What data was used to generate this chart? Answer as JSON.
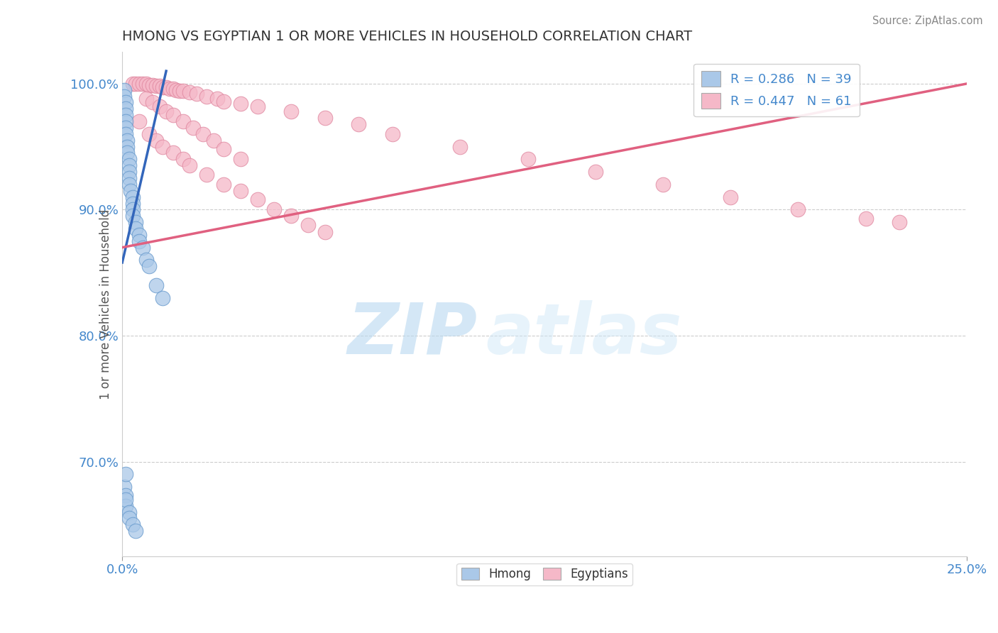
{
  "title": "HMONG VS EGYPTIAN 1 OR MORE VEHICLES IN HOUSEHOLD CORRELATION CHART",
  "source": "Source: ZipAtlas.com",
  "ylabel_label": "1 or more Vehicles in Household",
  "legend_items": [
    {
      "label": "R = 0.286   N = 39",
      "color": "#a8c4e0"
    },
    {
      "label": "R = 0.447   N = 61",
      "color": "#f4a0b0"
    }
  ],
  "watermark": "ZIPatlas",
  "watermark_color": "#c8e0f0",
  "title_color": "#333333",
  "source_color": "#888888",
  "axis_label_color": "#555555",
  "tick_color": "#4488cc",
  "background_color": "#ffffff",
  "hmong_scatter_color": "#aac8e8",
  "hmong_scatter_edge": "#6699cc",
  "egyptian_scatter_color": "#f5b8c8",
  "egyptian_scatter_edge": "#e088a0",
  "hmong_line_color": "#3366bb",
  "egyptian_line_color": "#e06080",
  "xmin": 0.0,
  "xmax": 0.25,
  "ymin": 0.625,
  "ymax": 1.025,
  "hmong_x": [
    0.0005,
    0.0005,
    0.001,
    0.001,
    0.001,
    0.001,
    0.001,
    0.001,
    0.0015,
    0.0015,
    0.0015,
    0.002,
    0.002,
    0.002,
    0.002,
    0.002,
    0.0025,
    0.003,
    0.003,
    0.003,
    0.003,
    0.004,
    0.004,
    0.005,
    0.005,
    0.006,
    0.007,
    0.008,
    0.01,
    0.012,
    0.0005,
    0.001,
    0.001,
    0.001,
    0.001,
    0.002,
    0.002,
    0.003,
    0.004
  ],
  "hmong_y": [
    0.995,
    0.99,
    0.985,
    0.98,
    0.975,
    0.97,
    0.965,
    0.96,
    0.955,
    0.95,
    0.945,
    0.94,
    0.935,
    0.93,
    0.925,
    0.92,
    0.915,
    0.91,
    0.905,
    0.9,
    0.895,
    0.89,
    0.885,
    0.88,
    0.875,
    0.87,
    0.86,
    0.855,
    0.84,
    0.83,
    0.68,
    0.673,
    0.665,
    0.69,
    0.67,
    0.66,
    0.655,
    0.65,
    0.645
  ],
  "egyptian_x": [
    0.003,
    0.004,
    0.005,
    0.006,
    0.007,
    0.008,
    0.009,
    0.01,
    0.011,
    0.012,
    0.013,
    0.014,
    0.015,
    0.016,
    0.017,
    0.018,
    0.02,
    0.022,
    0.025,
    0.028,
    0.03,
    0.035,
    0.04,
    0.05,
    0.06,
    0.07,
    0.08,
    0.1,
    0.12,
    0.14,
    0.16,
    0.18,
    0.2,
    0.22,
    0.23,
    0.005,
    0.008,
    0.01,
    0.012,
    0.015,
    0.018,
    0.02,
    0.025,
    0.03,
    0.035,
    0.04,
    0.045,
    0.05,
    0.055,
    0.06,
    0.007,
    0.009,
    0.011,
    0.013,
    0.015,
    0.018,
    0.021,
    0.024,
    0.027,
    0.03,
    0.035
  ],
  "egyptian_y": [
    1.0,
    1.0,
    1.0,
    1.0,
    1.0,
    0.999,
    0.999,
    0.998,
    0.998,
    0.997,
    0.997,
    0.996,
    0.996,
    0.995,
    0.994,
    0.994,
    0.993,
    0.992,
    0.99,
    0.988,
    0.986,
    0.984,
    0.982,
    0.978,
    0.973,
    0.968,
    0.96,
    0.95,
    0.94,
    0.93,
    0.92,
    0.91,
    0.9,
    0.893,
    0.89,
    0.97,
    0.96,
    0.955,
    0.95,
    0.945,
    0.94,
    0.935,
    0.928,
    0.92,
    0.915,
    0.908,
    0.9,
    0.895,
    0.888,
    0.882,
    0.988,
    0.985,
    0.982,
    0.978,
    0.975,
    0.97,
    0.965,
    0.96,
    0.955,
    0.948,
    0.94
  ],
  "hmong_line_x": [
    0.0,
    0.013
  ],
  "hmong_line_y": [
    0.858,
    1.01
  ],
  "egyptian_line_x": [
    0.0,
    0.25
  ],
  "egyptian_line_y": [
    0.87,
    1.0
  ],
  "ytick_vals": [
    1.0,
    0.9,
    0.8,
    0.7
  ],
  "ytick_labels": [
    "100.0%",
    "90.0%",
    "80.0%",
    "70.0%"
  ],
  "xtick_vals": [
    0.0,
    0.25
  ],
  "xtick_labels": [
    "0.0%",
    "25.0%"
  ]
}
